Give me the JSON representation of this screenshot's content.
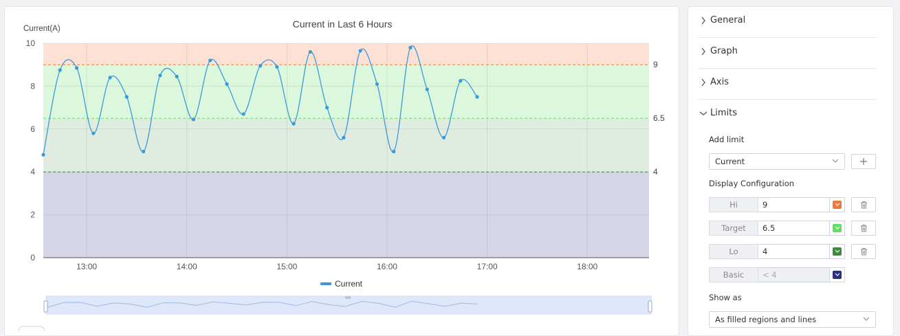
{
  "chart": {
    "title": "Current in Last 6 Hours",
    "y_axis_title": "Current(A)",
    "legend_label": "Current",
    "series_color": "#3a9ad9"
  },
  "chart_data": {
    "type": "line",
    "title": "Current in Last 6 Hours",
    "ylabel": "Current(A)",
    "xlabel": "",
    "ylim": [
      0,
      10
    ],
    "y_ticks": [
      0,
      2,
      4,
      6,
      8,
      10
    ],
    "x_range": [
      "12:34",
      "18:37"
    ],
    "x_ticks": [
      "13:00",
      "14:00",
      "15:00",
      "16:00",
      "17:00",
      "18:00"
    ],
    "grid": true,
    "legend": "bottom-center",
    "series": [
      {
        "name": "Current",
        "color": "#3a9ad9",
        "points": [
          [
            "12:34",
            4.8
          ],
          [
            "12:44",
            8.75
          ],
          [
            "12:54",
            8.85
          ],
          [
            "13:04",
            5.8
          ],
          [
            "13:14",
            8.4
          ],
          [
            "13:24",
            7.5
          ],
          [
            "13:34",
            4.95
          ],
          [
            "13:44",
            8.5
          ],
          [
            "13:54",
            8.45
          ],
          [
            "14:04",
            6.45
          ],
          [
            "14:14",
            9.2
          ],
          [
            "14:24",
            8.1
          ],
          [
            "14:34",
            6.7
          ],
          [
            "14:44",
            8.95
          ],
          [
            "14:54",
            8.9
          ],
          [
            "15:04",
            6.25
          ],
          [
            "15:14",
            9.6
          ],
          [
            "15:24",
            7.0
          ],
          [
            "15:34",
            5.6
          ],
          [
            "15:44",
            9.65
          ],
          [
            "15:54",
            8.1
          ],
          [
            "16:04",
            4.95
          ],
          [
            "16:14",
            9.8
          ],
          [
            "16:24",
            7.85
          ],
          [
            "16:34",
            5.6
          ],
          [
            "16:44",
            8.25
          ],
          [
            "16:54",
            7.5
          ]
        ]
      }
    ],
    "limits": [
      {
        "name": "Hi",
        "value": 9,
        "label": "9",
        "color": "#f0783c"
      },
      {
        "name": "Target",
        "value": 6.5,
        "label": "6.5",
        "color": "#5fe05f"
      },
      {
        "name": "Lo",
        "value": 4,
        "label": "4",
        "color": "#3c8a3c"
      },
      {
        "name": "Basic",
        "label": "< 4",
        "color": "#2b2f87"
      }
    ]
  },
  "panel": {
    "sections": [
      "General",
      "Graph",
      "Axis",
      "Limits"
    ],
    "add_limit_label": "Add limit",
    "add_limit_value": "Current",
    "display_config_label": "Display Configuration",
    "limits": [
      {
        "name": "Hi",
        "value": "9",
        "color": "#f0783c"
      },
      {
        "name": "Target",
        "value": "6.5",
        "color": "#5fe05f"
      },
      {
        "name": "Lo",
        "value": "4",
        "color": "#3c8a3c"
      },
      {
        "name": "Basic",
        "value": "< 4",
        "color": "#2b2f87"
      }
    ],
    "show_as_label": "Show as",
    "show_as_value": "As filled regions and lines"
  }
}
